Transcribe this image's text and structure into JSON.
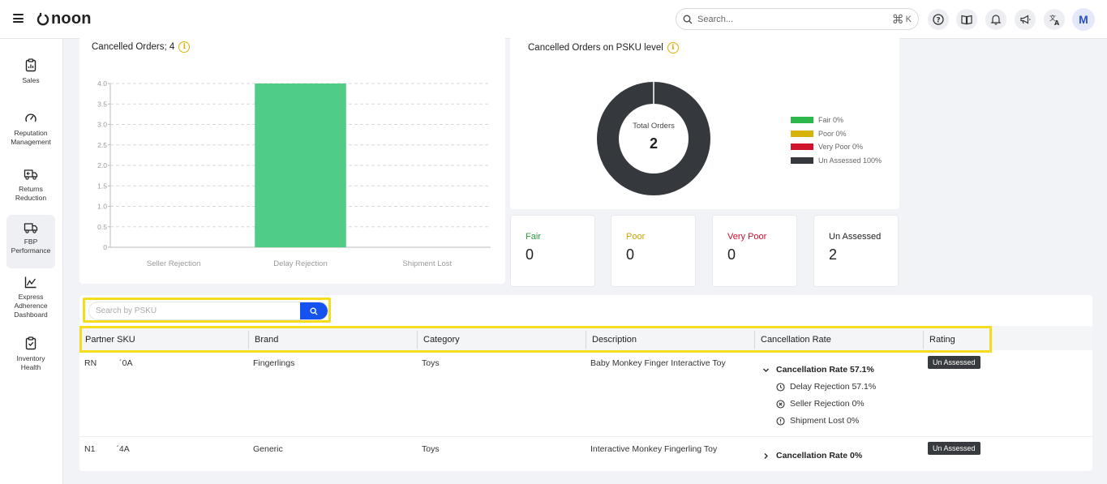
{
  "header": {
    "brand": "noon",
    "search_placeholder": "Search...",
    "shortcut_key": "K",
    "avatar_initial": "M"
  },
  "sidebar": {
    "items": [
      {
        "label": "Sales",
        "icon": "clipboard-icon"
      },
      {
        "label": "Reputation Management",
        "icon": "gauge-icon"
      },
      {
        "label": "Returns Reduction",
        "icon": "truck-return-icon"
      },
      {
        "label": "FBP Performance",
        "icon": "delivery-truck-icon",
        "active": true
      },
      {
        "label": "Express Adherence Dashboard",
        "icon": "line-chart-icon"
      },
      {
        "label": "Inventory Health",
        "icon": "inventory-clipboard-icon"
      }
    ]
  },
  "cancelled_orders_card": {
    "title": "Cancelled Orders; 4"
  },
  "psku_card": {
    "title": "Cancelled Orders on PSKU level",
    "center_label": "Total Orders",
    "center_value": "2"
  },
  "chart_data": [
    {
      "type": "bar",
      "title": "Cancelled Orders; 4",
      "categories": [
        "Seller Rejection",
        "Delay Rejection",
        "Shipment Lost"
      ],
      "values": [
        0,
        4,
        0
      ],
      "ylim": [
        0,
        4.0
      ],
      "yticks": [
        "0",
        "0.5",
        "1.0",
        "1.5",
        "2.0",
        "2.5",
        "3.0",
        "3.5",
        "4.0"
      ],
      "grid": true,
      "color": "#4fcd87"
    },
    {
      "type": "pie",
      "title": "Cancelled Orders on PSKU level",
      "categories": [
        "Fair 0%",
        "Poor 0%",
        "Very Poor 0%",
        "Un Assessed 100%"
      ],
      "values": [
        0,
        0,
        0,
        100
      ],
      "colors": [
        "#2eb84c",
        "#d6b20a",
        "#d0142c",
        "#35383d"
      ],
      "legend": "right"
    }
  ],
  "stats": [
    {
      "label": "Fair",
      "value": "0",
      "color": "#2a9d3c"
    },
    {
      "label": "Poor",
      "value": "0",
      "color": "#c9a400"
    },
    {
      "label": "Very Poor",
      "value": "0",
      "color": "#c8102e"
    },
    {
      "label": "Un Assessed",
      "value": "2",
      "color": "#222222"
    }
  ],
  "table": {
    "search_placeholder": "Search by PSKU",
    "headers": [
      "Partner SKU",
      "Brand",
      "Category",
      "Description",
      "Cancellation Rate",
      "Rating"
    ],
    "rows": [
      {
        "sku_prefix": "RN",
        "sku_suffix": "´0A",
        "brand": "Fingerlings",
        "category": "Toys",
        "description": "Baby Monkey Finger Interactive Toy",
        "rate": "Cancellation Rate 57.1%",
        "breakdown": [
          "Delay Rejection 57.1%",
          "Seller Rejection 0%",
          "Shipment Lost 0%"
        ],
        "rating": "Un Assessed"
      },
      {
        "sku_prefix": "N1",
        "sku_suffix": "´4A",
        "brand": "Generic",
        "category": "Toys",
        "description": "Interactive Monkey Fingerling Toy",
        "rate": "Cancellation Rate 0%",
        "rating": "Un Assessed"
      }
    ]
  }
}
